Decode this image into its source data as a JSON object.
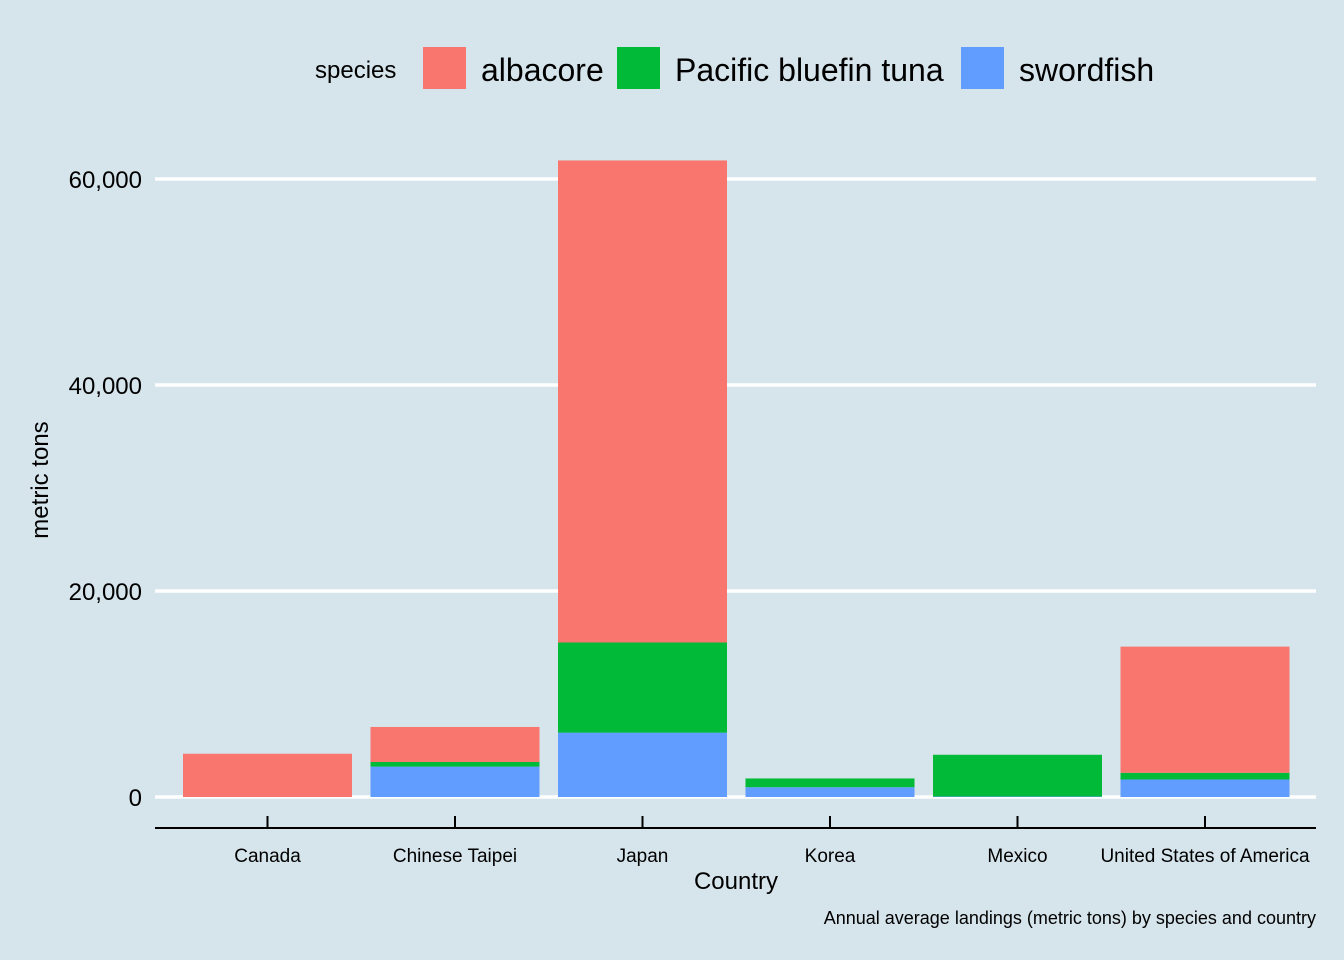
{
  "chart_data": {
    "type": "bar",
    "stacked": true,
    "categories": [
      "Canada",
      "Chinese Taipei",
      "Japan",
      "Korea",
      "Mexico",
      "United States of America"
    ],
    "series": [
      {
        "name": "swordfish",
        "color": "#619cff",
        "values": [
          0,
          2950,
          6250,
          950,
          50,
          1700
        ]
      },
      {
        "name": "Pacific bluefin tuna",
        "color": "#00ba38",
        "values": [
          0,
          450,
          8750,
          850,
          4050,
          650
        ]
      },
      {
        "name": "albacore",
        "color": "#f8766d",
        "values": [
          4200,
          3400,
          46800,
          0,
          0,
          12250
        ]
      }
    ],
    "legend_title": "species",
    "legend_order": [
      "albacore",
      "Pacific bluefin tuna",
      "swordfish"
    ],
    "legend_position": "top",
    "xlabel": "Country",
    "ylabel": "metric tons",
    "caption": "Annual average landings (metric tons) by species and country",
    "ylim": [
      0,
      60000
    ],
    "yticks": [
      0,
      20000,
      40000,
      60000
    ],
    "ytick_labels": [
      "0",
      "20,000",
      "40,000",
      "60,000"
    ],
    "grid": "horizontal major only",
    "background_color": "#d6e4eb",
    "gridline_color": "#ffffff"
  }
}
